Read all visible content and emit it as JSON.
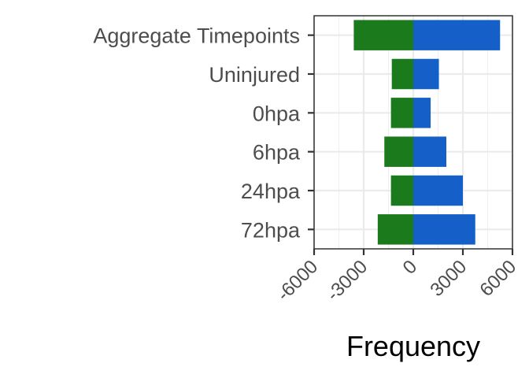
{
  "chart_data": {
    "type": "bar",
    "orientation": "horizontal",
    "stacked": "diverging",
    "categories": [
      "Aggregate Timepoints",
      "Uninjured",
      "0hpa",
      "6hpa",
      "24hpa",
      "72hpa"
    ],
    "series": [
      {
        "color": "#1b7a1b",
        "values": [
          -3600,
          -1300,
          -1350,
          -1750,
          -1350,
          -2150
        ]
      },
      {
        "color": "#1460c8",
        "values": [
          5250,
          1550,
          1050,
          2000,
          3000,
          3750
        ]
      }
    ],
    "xlabel": "Frequency",
    "ylabel": "",
    "xlim": [
      -6000,
      6000
    ],
    "xticks": [
      -6000,
      -3000,
      0,
      3000,
      6000
    ],
    "xtick_labels": [
      "-6000",
      "-3000",
      "0",
      "3000",
      "6000"
    ],
    "grid": true,
    "legend": "none"
  }
}
